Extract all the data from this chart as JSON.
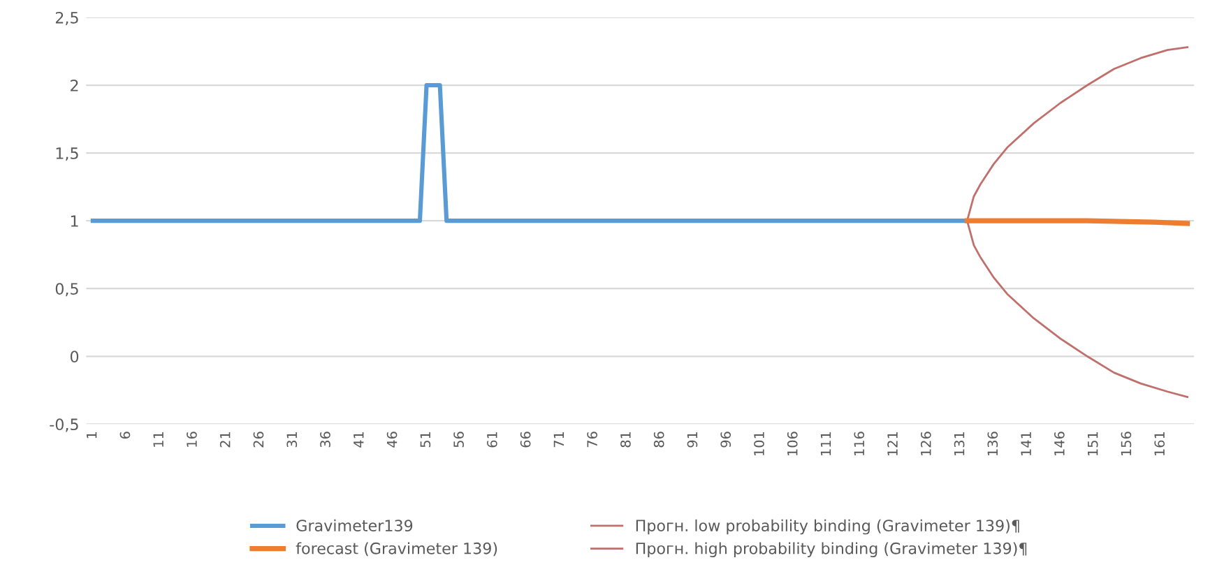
{
  "chart_data": {
    "type": "line",
    "xlim": [
      0,
      166
    ],
    "xticks": [
      1,
      6,
      11,
      16,
      21,
      26,
      31,
      36,
      41,
      46,
      51,
      56,
      61,
      66,
      71,
      76,
      81,
      86,
      91,
      96,
      101,
      106,
      111,
      116,
      121,
      126,
      131,
      136,
      141,
      146,
      151,
      156,
      161
    ],
    "ylim": [
      -0.5,
      2.5
    ],
    "yticks": [
      {
        "value": -0.5,
        "label": "-0,5"
      },
      {
        "value": 0,
        "label": "0"
      },
      {
        "value": 0.5,
        "label": "0,5"
      },
      {
        "value": 1,
        "label": "1"
      },
      {
        "value": 1.5,
        "label": "1,5"
      },
      {
        "value": 2,
        "label": "2"
      },
      {
        "value": 2.5,
        "label": "2,5"
      }
    ],
    "grid": "y",
    "legend": "bottom",
    "marker": "none",
    "line_style": "solid",
    "series": [
      {
        "name": "Gravimeter139",
        "color": "#5b9bd5",
        "x": [
          1,
          50,
          51,
          53,
          54,
          132
        ],
        "values": [
          1,
          1,
          2,
          2,
          1,
          1
        ]
      },
      {
        "name": "forecast (Gravimeter 139)",
        "color": "#ed7d31",
        "x": [
          132,
          140,
          150,
          160,
          165
        ],
        "values": [
          1,
          1,
          1,
          0.99,
          0.98
        ]
      },
      {
        "name": "Прогн. low probability binding (Gravimeter 139)¶",
        "color": "#c0706c",
        "x": [
          132,
          133,
          134,
          136,
          138,
          142,
          146,
          150,
          154,
          158,
          162,
          165
        ],
        "values": [
          1,
          0.82,
          0.73,
          0.58,
          0.46,
          0.28,
          0.13,
          0.0,
          -0.12,
          -0.2,
          -0.26,
          -0.3
        ]
      },
      {
        "name": "Прогн. high probability binding (Gravimeter 139)¶",
        "color": "#c0706c",
        "x": [
          132,
          133,
          134,
          136,
          138,
          142,
          146,
          150,
          154,
          158,
          162,
          165
        ],
        "values": [
          1,
          1.18,
          1.27,
          1.42,
          1.54,
          1.72,
          1.87,
          2.0,
          2.12,
          2.2,
          2.26,
          2.28
        ]
      }
    ]
  }
}
